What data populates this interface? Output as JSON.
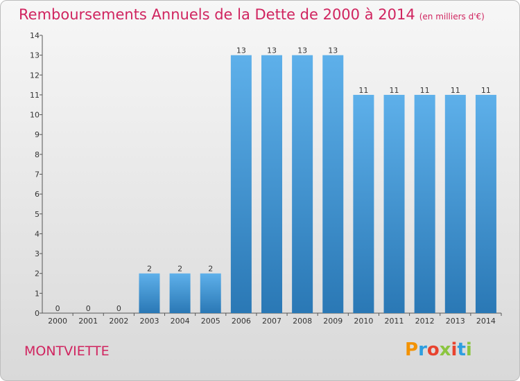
{
  "header": {
    "title": "Remboursements Annuels de la Dette de 2000 à 2014",
    "unit": "(en milliers d'€)"
  },
  "commune": "MONTVIETTE",
  "logo": {
    "letters": [
      "P",
      "r",
      "o",
      "x",
      "i",
      "t",
      "i"
    ],
    "colors": [
      "#f39200",
      "#2d9ee0",
      "#e8432f",
      "#8bc53f",
      "#e8432f",
      "#2d9ee0",
      "#8bc53f"
    ]
  },
  "chart_data": {
    "type": "bar",
    "categories": [
      "2000",
      "2001",
      "2002",
      "2003",
      "2004",
      "2005",
      "2006",
      "2007",
      "2008",
      "2009",
      "2010",
      "2011",
      "2012",
      "2013",
      "2014"
    ],
    "values": [
      0,
      0,
      0,
      2,
      2,
      2,
      13,
      13,
      13,
      13,
      11,
      11,
      11,
      11,
      11
    ],
    "y_ticks": [
      "0",
      "1",
      "2",
      "3",
      "4",
      "5",
      "6",
      "7",
      "8",
      "9",
      "10",
      "11",
      "12",
      "13",
      "14"
    ],
    "ylim": [
      0,
      14
    ],
    "grid": false,
    "colors": {
      "bar_light": "#5eb0ea",
      "bar_dark": "#2a78b5",
      "axis": "#555555"
    }
  }
}
